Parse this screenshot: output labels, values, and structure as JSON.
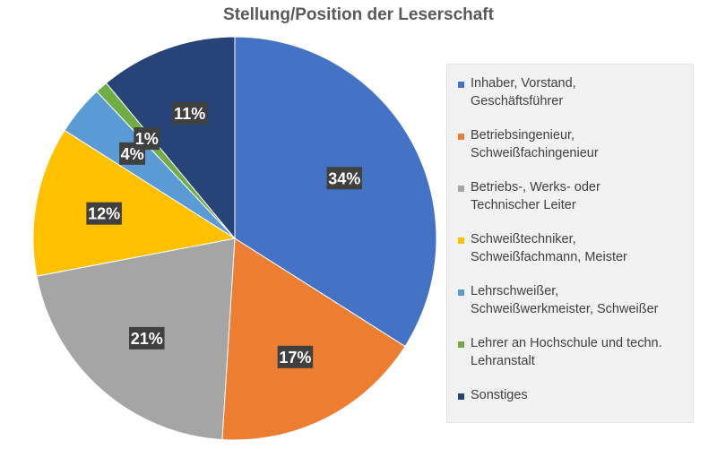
{
  "chart_data": {
    "type": "pie",
    "title": "Stellung/Position der Leserschaft",
    "legend_position": "right",
    "slices": [
      {
        "label": "Inhaber, Vorstand,\nGeschäftsführer",
        "value": 34,
        "data_label": "34%",
        "color": "#4472C4"
      },
      {
        "label": "Betriebsingenieur,\nSchweißfachingenieur",
        "value": 17,
        "data_label": "17%",
        "color": "#ED7D31"
      },
      {
        "label": "Betriebs-, Werks- oder\nTechnischer Leiter",
        "value": 21,
        "data_label": "21%",
        "color": "#A5A5A5"
      },
      {
        "label": "Schweißtechniker,\nSchweißfachmann, Meister",
        "value": 12,
        "data_label": "12%",
        "color": "#FFC000"
      },
      {
        "label": "Lehrschweißer,\nSchweißwerkmeister, Schweißer",
        "value": 4,
        "data_label": "4%",
        "color": "#5B9BD5"
      },
      {
        "label": "Lehrer an Hochschule und techn.\nLehranstalt",
        "value": 1,
        "data_label": "1%",
        "color": "#70AD47"
      },
      {
        "label": "Sonstiges",
        "value": 11,
        "data_label": "11%",
        "color": "#264478"
      }
    ]
  }
}
